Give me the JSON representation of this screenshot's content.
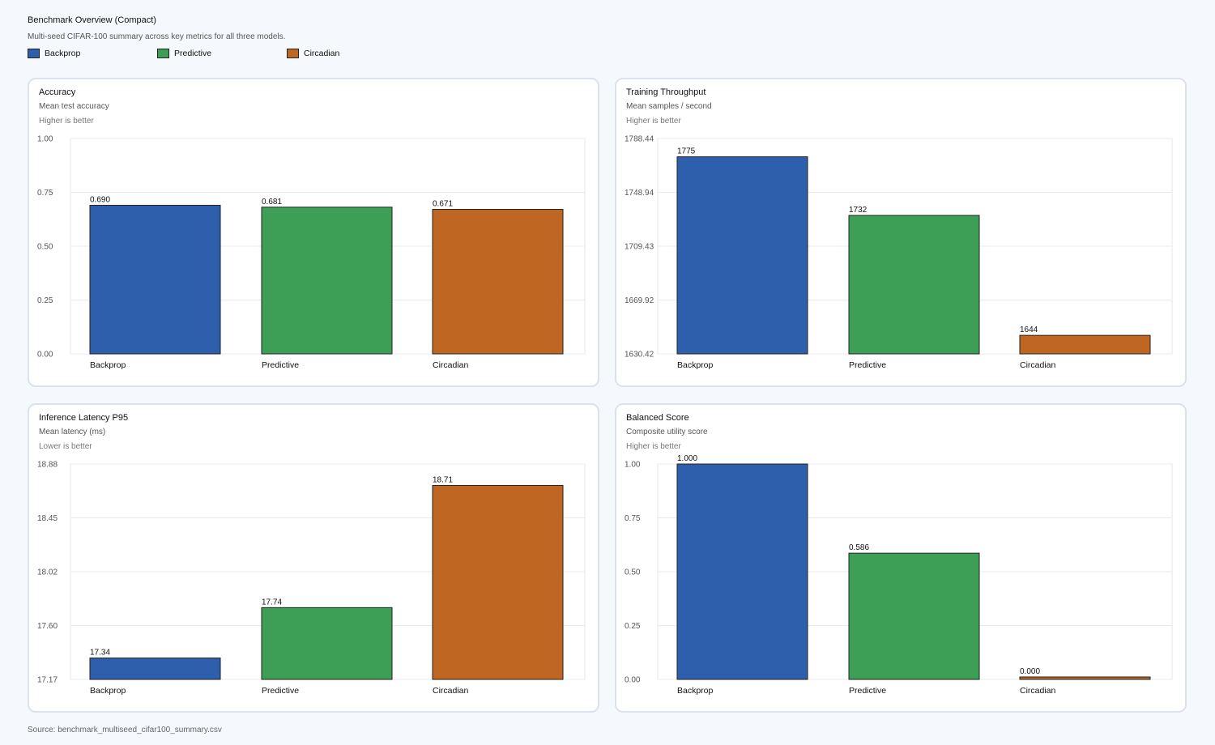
{
  "title": "Benchmark Overview (Compact)",
  "subtitle": "Multi-seed CIFAR-100 summary across key metrics for all three models.",
  "legend": [
    {
      "label": "Backprop",
      "color": "#2e5fac"
    },
    {
      "label": "Predictive",
      "color": "#3d9e56"
    },
    {
      "label": "Circadian",
      "color": "#c06623"
    }
  ],
  "source": "Source: benchmark_multiseed_cifar100_summary.csv",
  "chart_data": [
    {
      "type": "bar",
      "title": "Accuracy",
      "subtitle": "Mean test accuracy",
      "note": "Higher is better",
      "categories": [
        "Backprop",
        "Predictive",
        "Circadian"
      ],
      "values": [
        0.69,
        0.681,
        0.671
      ],
      "value_labels": [
        "0.690",
        "0.681",
        "0.671"
      ],
      "yticks": [
        "0.00",
        "0.25",
        "0.50",
        "0.75",
        "1.00"
      ],
      "ylim": [
        0,
        1.0
      ],
      "grid": true
    },
    {
      "type": "bar",
      "title": "Training Throughput",
      "subtitle": "Mean samples / second",
      "note": "Higher is better",
      "categories": [
        "Backprop",
        "Predictive",
        "Circadian"
      ],
      "values": [
        1775,
        1732,
        1644
      ],
      "value_labels": [
        "1775",
        "1732",
        "1644"
      ],
      "yticks": [
        "1630.42",
        "1669.92",
        "1709.43",
        "1748.94",
        "1788.44"
      ],
      "ylim": [
        1630.42,
        1788.44
      ],
      "grid": true
    },
    {
      "type": "bar",
      "title": "Inference Latency P95",
      "subtitle": "Mean latency (ms)",
      "note": "Lower is better",
      "categories": [
        "Backprop",
        "Predictive",
        "Circadian"
      ],
      "values": [
        17.34,
        17.74,
        18.71
      ],
      "value_labels": [
        "17.34",
        "17.74",
        "18.71"
      ],
      "yticks": [
        "17.17",
        "17.60",
        "18.02",
        "18.45",
        "18.88"
      ],
      "ylim": [
        17.17,
        18.88
      ],
      "grid": true
    },
    {
      "type": "bar",
      "title": "Balanced Score",
      "subtitle": "Composite utility score",
      "note": "Higher is better",
      "categories": [
        "Backprop",
        "Predictive",
        "Circadian"
      ],
      "values": [
        1.0,
        0.586,
        0.0
      ],
      "value_labels": [
        "1.000",
        "0.586",
        "0.000"
      ],
      "yticks": [
        "0.00",
        "0.25",
        "0.50",
        "0.75",
        "1.00"
      ],
      "ylim": [
        0,
        1.0
      ],
      "grid": true
    }
  ]
}
